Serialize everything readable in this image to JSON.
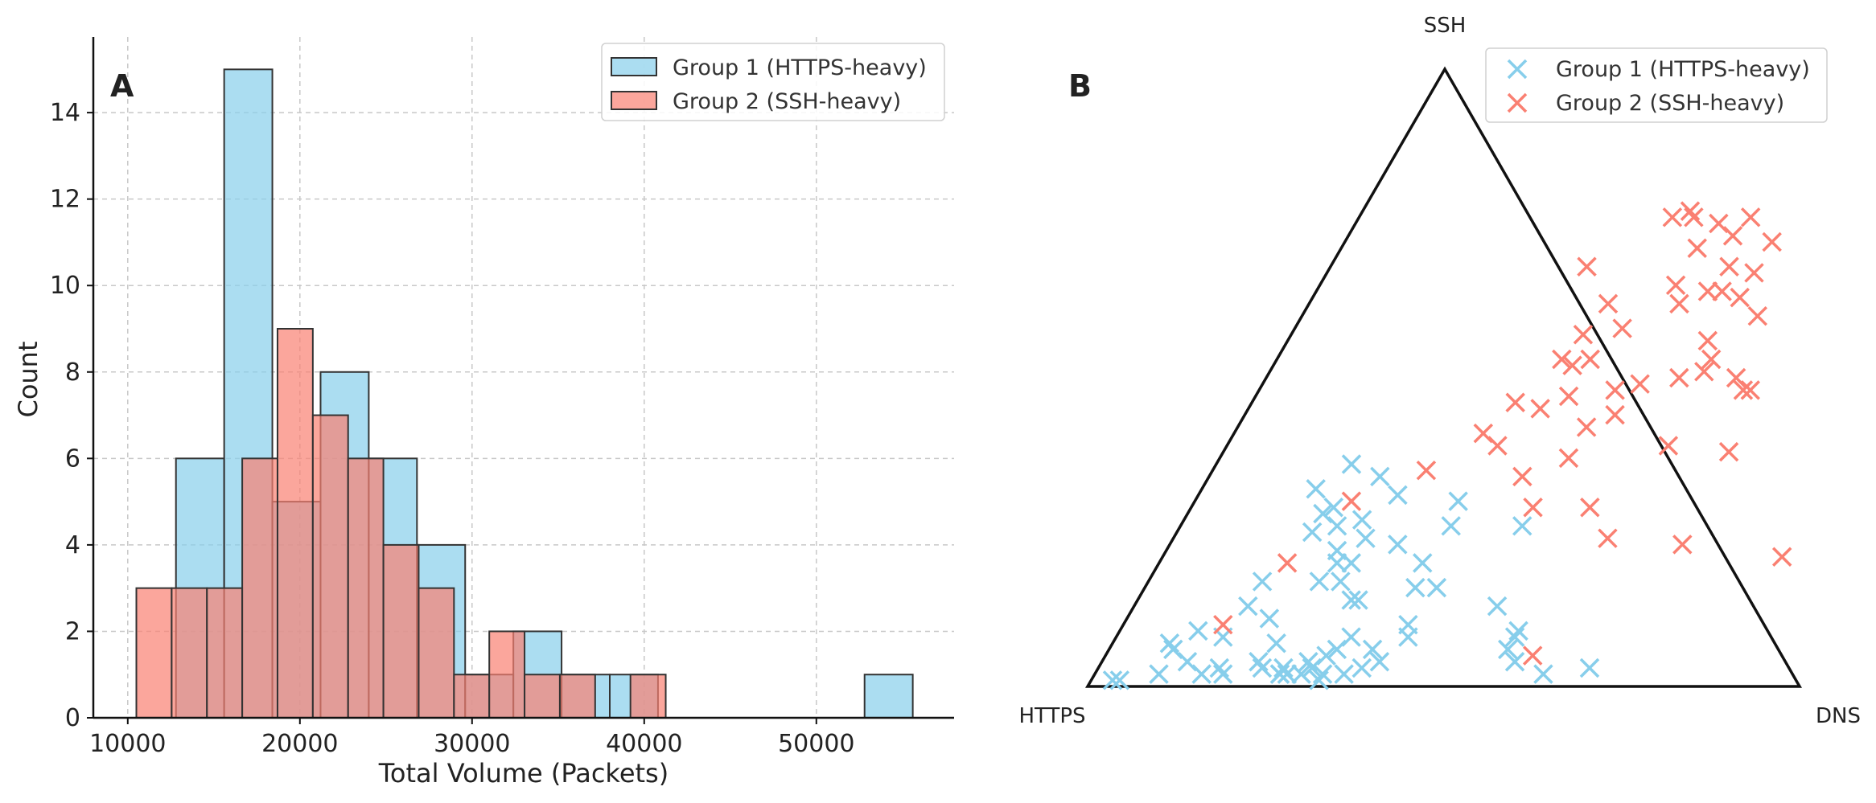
{
  "chart_data": [
    {
      "panel": "A",
      "type": "bar",
      "xlabel": "Total Volume (Packets)",
      "ylabel": "Count",
      "xticks": [
        10000,
        20000,
        30000,
        40000,
        50000
      ],
      "yticks": [
        0,
        2,
        4,
        6,
        8,
        10,
        12,
        14
      ],
      "xlim": [
        8000,
        58000
      ],
      "ylim": [
        0,
        15.75
      ],
      "grid": true,
      "legend_position": "top-right",
      "series": [
        {
          "name": "Group 1 (HTTPS-heavy)",
          "color": "#87CEEB",
          "bins": [
            {
              "x0": 12800,
              "x1": 15600,
              "count": 6
            },
            {
              "x0": 15600,
              "x1": 18400,
              "count": 15
            },
            {
              "x0": 18400,
              "x1": 21200,
              "count": 5
            },
            {
              "x0": 21200,
              "x1": 24000,
              "count": 8
            },
            {
              "x0": 24000,
              "x1": 26800,
              "count": 6
            },
            {
              "x0": 26800,
              "x1": 29600,
              "count": 4
            },
            {
              "x0": 29600,
              "x1": 32400,
              "count": 1
            },
            {
              "x0": 32400,
              "x1": 35200,
              "count": 2
            },
            {
              "x0": 35200,
              "x1": 38000,
              "count": 1
            },
            {
              "x0": 38000,
              "x1": 40800,
              "count": 1
            },
            {
              "x0": 52800,
              "x1": 55600,
              "count": 1
            }
          ]
        },
        {
          "name": "Group 2 (SSH-heavy)",
          "color": "#FA8072",
          "bins": [
            {
              "x0": 10500,
              "x1": 12550,
              "count": 3
            },
            {
              "x0": 12550,
              "x1": 14600,
              "count": 3
            },
            {
              "x0": 14600,
              "x1": 16650,
              "count": 3
            },
            {
              "x0": 16650,
              "x1": 18700,
              "count": 6
            },
            {
              "x0": 18700,
              "x1": 20750,
              "count": 9
            },
            {
              "x0": 20750,
              "x1": 22800,
              "count": 7
            },
            {
              "x0": 22800,
              "x1": 24850,
              "count": 6
            },
            {
              "x0": 24850,
              "x1": 26900,
              "count": 4
            },
            {
              "x0": 26900,
              "x1": 28950,
              "count": 3
            },
            {
              "x0": 28950,
              "x1": 31000,
              "count": 1
            },
            {
              "x0": 31000,
              "x1": 33050,
              "count": 2
            },
            {
              "x0": 33050,
              "x1": 35100,
              "count": 1
            },
            {
              "x0": 35100,
              "x1": 37150,
              "count": 1
            },
            {
              "x0": 37150,
              "x1": 39200,
              "count": 0
            },
            {
              "x0": 39200,
              "x1": 41250,
              "count": 1
            }
          ]
        }
      ]
    },
    {
      "panel": "B",
      "type": "scatter",
      "subtype": "ternary",
      "vertices": {
        "top": "SSH",
        "left": "HTTPS",
        "right": "DNS"
      },
      "legend_position": "top-right",
      "marker": "x",
      "note_coords": "points given as [DNS fraction, SSH fraction]; HTTPS = 1 - DNS - SSH",
      "series": [
        {
          "name": "Group 1 (HTTPS-heavy)",
          "color": "#87CEEB",
          "points": [
            [
              0.03,
              0.01
            ],
            [
              0.04,
              0.01
            ],
            [
              0.09,
              0.02
            ],
            [
              0.15,
              0.02
            ],
            [
              0.17,
              0.03
            ],
            [
              0.18,
              0.02
            ],
            [
              0.26,
              0.02
            ],
            [
              0.26,
              0.02
            ],
            [
              0.29,
              0.02
            ],
            [
              0.32,
              0.01
            ],
            [
              0.32,
              0.02
            ],
            [
              0.35,
              0.02
            ],
            [
              0.37,
              0.03
            ],
            [
              0.39,
              0.04
            ],
            [
              0.37,
              0.06
            ],
            [
              0.41,
              0.08
            ],
            [
              0.4,
              0.1
            ],
            [
              0.33,
              0.08
            ],
            [
              0.12,
              0.04
            ],
            [
              0.08,
              0.07
            ],
            [
              0.09,
              0.06
            ],
            [
              0.15,
              0.08
            ],
            [
              0.11,
              0.09
            ],
            [
              0.16,
              0.13
            ],
            [
              0.16,
              0.17
            ],
            [
              0.2,
              0.11
            ],
            [
              0.23,
              0.07
            ],
            [
              0.27,
              0.02
            ],
            [
              0.22,
              0.04
            ],
            [
              0.3,
              0.03
            ],
            [
              0.23,
              0.03
            ],
            [
              0.26,
              0.03
            ],
            [
              0.29,
              0.04
            ],
            [
              0.31,
              0.05
            ],
            [
              0.32,
              0.06
            ],
            [
              0.3,
              0.14
            ],
            [
              0.31,
              0.14
            ],
            [
              0.24,
              0.17
            ],
            [
              0.27,
              0.17
            ],
            [
              0.25,
              0.2
            ],
            [
              0.27,
              0.2
            ],
            [
              0.19,
              0.25
            ],
            [
              0.22,
              0.26
            ],
            [
              0.27,
              0.24
            ],
            [
              0.32,
              0.23
            ],
            [
              0.19,
              0.28
            ],
            [
              0.37,
              0.2
            ],
            [
              0.41,
              0.16
            ],
            [
              0.38,
              0.26
            ],
            [
              0.48,
              0.26
            ],
            [
              0.51,
              0.13
            ],
            [
              0.56,
              0.08
            ],
            [
              0.63,
              0.02
            ],
            [
              0.69,
              0.03
            ],
            [
              0.58,
              0.04
            ],
            [
              0.56,
              0.09
            ],
            [
              0.56,
              0.06
            ],
            [
              0.38,
              0.16
            ],
            [
              0.24,
              0.22
            ],
            [
              0.25,
              0.27
            ],
            [
              0.16,
              0.32
            ],
            [
              0.2,
              0.29
            ],
            [
              0.28,
              0.31
            ],
            [
              0.19,
              0.36
            ],
            [
              0.24,
              0.34
            ],
            [
              0.37,
              0.3
            ]
          ]
        },
        {
          "name": "Group 2 (SSH-heavy)",
          "color": "#FA8072",
          "points": [
            [
              0.14,
              0.1
            ],
            [
              0.18,
              0.2
            ],
            [
              0.22,
              0.3
            ],
            [
              0.3,
              0.35
            ],
            [
              0.38,
              0.39
            ],
            [
              0.35,
              0.41
            ],
            [
              0.41,
              0.45
            ],
            [
              0.37,
              0.46
            ],
            [
              0.44,
              0.47
            ],
            [
              0.44,
              0.53
            ],
            [
              0.41,
              0.57
            ],
            [
              0.42,
              0.62
            ],
            [
              0.36,
              0.68
            ],
            [
              0.44,
              0.76
            ],
            [
              0.46,
              0.77
            ],
            [
              0.47,
              0.76
            ],
            [
              0.51,
              0.75
            ],
            [
              0.55,
              0.76
            ],
            [
              0.5,
              0.71
            ],
            [
              0.54,
              0.73
            ],
            [
              0.56,
              0.68
            ],
            [
              0.6,
              0.67
            ],
            [
              0.6,
              0.72
            ],
            [
              0.5,
              0.65
            ],
            [
              0.52,
              0.62
            ],
            [
              0.55,
              0.64
            ],
            [
              0.57,
              0.64
            ],
            [
              0.6,
              0.63
            ],
            [
              0.64,
              0.6
            ],
            [
              0.59,
              0.56
            ],
            [
              0.61,
              0.53
            ],
            [
              0.61,
              0.51
            ],
            [
              0.66,
              0.5
            ],
            [
              0.69,
              0.48
            ],
            [
              0.68,
              0.48
            ],
            [
              0.58,
              0.5
            ],
            [
              0.5,
              0.48
            ],
            [
              0.53,
              0.49
            ],
            [
              0.46,
              0.58
            ],
            [
              0.42,
              0.52
            ],
            [
              0.4,
              0.53
            ],
            [
              0.49,
              0.42
            ],
            [
              0.49,
              0.37
            ],
            [
              0.44,
              0.34
            ],
            [
              0.56,
              0.29
            ],
            [
              0.61,
              0.24
            ],
            [
              0.62,
              0.39
            ],
            [
              0.71,
              0.38
            ],
            [
              0.72,
              0.23
            ],
            [
              0.87,
              0.21
            ],
            [
              0.6,
              0.05
            ],
            [
              0.48,
              0.29
            ],
            [
              0.52,
              0.44
            ]
          ]
        }
      ]
    }
  ],
  "panels": {
    "a_label": "A",
    "b_label": "B"
  }
}
